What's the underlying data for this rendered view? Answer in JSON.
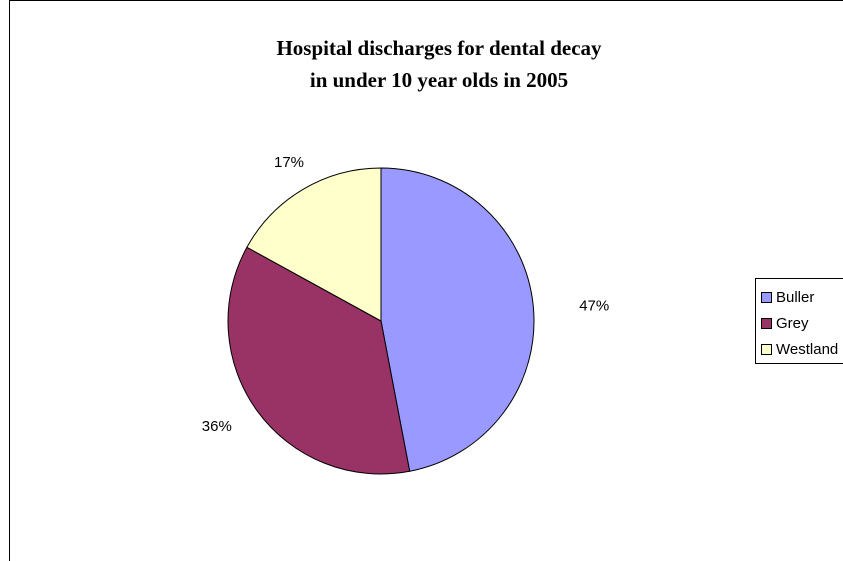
{
  "chart_data": {
    "type": "pie",
    "title_lines": [
      "Hospital discharges for dental decay",
      "in under 10 year olds in 2005"
    ],
    "categories": [
      "Buller",
      "Grey",
      "Westland"
    ],
    "values": [
      47,
      36,
      17
    ],
    "labels": [
      "47%",
      "36%",
      "17%"
    ],
    "colors": [
      "#9999FF",
      "#993366",
      "#FFFFCC"
    ],
    "legend_position": "right"
  }
}
